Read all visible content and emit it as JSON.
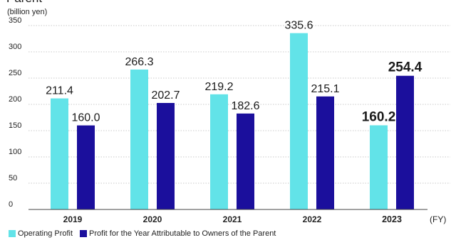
{
  "header": {
    "title_partial": "Parent",
    "unit": "(billion yen)"
  },
  "colors": {
    "operating_profit": "#62E3E8",
    "profit_attributable": "#1B0F9C",
    "grid": "#b8b8b8",
    "axis": "#444444"
  },
  "chart_data": {
    "type": "bar",
    "title": "",
    "ylabel": "(billion yen)",
    "xlabel": "(FY)",
    "ylim": [
      0,
      350
    ],
    "yticks": [
      0,
      50,
      100,
      150,
      200,
      250,
      300,
      350
    ],
    "categories": [
      "2019",
      "2020",
      "2021",
      "2022",
      "2023"
    ],
    "highlight_category": "2023",
    "grid": true,
    "legend_position": "bottom-left",
    "series": [
      {
        "name": "Operating Profit",
        "values": [
          211.4,
          266.3,
          219.2,
          335.6,
          160.2
        ],
        "labels": [
          "211.4",
          "266.3",
          "219.2",
          "335.6",
          "160.2"
        ]
      },
      {
        "name": "Profit for the Year Attributable to Owners of the Parent",
        "values": [
          160.0,
          202.7,
          182.6,
          215.1,
          254.4
        ],
        "labels": [
          "160.0",
          "202.7",
          "182.6",
          "215.1",
          "254.4"
        ]
      }
    ]
  }
}
